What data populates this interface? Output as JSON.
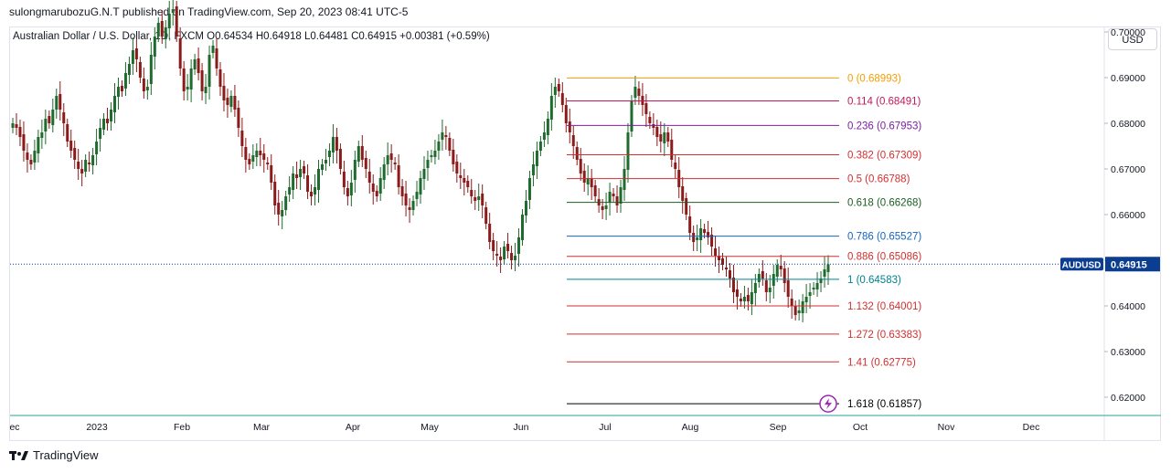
{
  "header": {
    "published_by": "sulongmarubozuG.N.T published on TradingView.com, Sep 20, 2023 08:41 UTC-5"
  },
  "legend": {
    "text": "Australian Dollar / U.S. Dollar, 1D, FXCM  O0.64534  H0.64918  L0.64481  C0.64915  +0.00381 (+0.59%)"
  },
  "currency_button": "USD",
  "footer": {
    "brand": "TradingView"
  },
  "colors": {
    "up": "#26a69a",
    "up_body": "#1f6b2e",
    "down": "#8b1a1a",
    "accent": "#0b3d91"
  },
  "chart_data": {
    "type": "candlestick",
    "symbol": "AUDUSD",
    "last_price": "0.64915",
    "ylim": [
      0.616,
      0.701
    ],
    "y_ticks": [
      "0.70000",
      "0.69000",
      "0.68000",
      "0.67000",
      "0.66000",
      "0.65000",
      "0.64000",
      "0.63000",
      "0.62000"
    ],
    "x_ticks": [
      "ec",
      "2023",
      "Feb",
      "Mar",
      "Apr",
      "May",
      "Jun",
      "Jul",
      "Aug",
      "Sep",
      "Oct",
      "Nov",
      "Dec"
    ],
    "fib_levels": [
      {
        "label": "0 (0.68993)",
        "value": 0.68993,
        "color": "#f59d00"
      },
      {
        "label": "0.114 (0.68491)",
        "value": 0.68491,
        "color": "#c2185b"
      },
      {
        "label": "0.236 (0.67953)",
        "value": 0.67953,
        "color": "#7b1fa2"
      },
      {
        "label": "0.382 (0.67309)",
        "value": 0.67309,
        "color": "#d32f2f"
      },
      {
        "label": "0.5 (0.66788)",
        "value": 0.66788,
        "color": "#d32f2f"
      },
      {
        "label": "0.618 (0.66268)",
        "value": 0.66268,
        "color": "#1b5e20"
      },
      {
        "label": "0.786 (0.65527)",
        "value": 0.65527,
        "color": "#1565c0"
      },
      {
        "label": "0.886 (0.65086)",
        "value": 0.65086,
        "color": "#d32f2f"
      },
      {
        "label": "1 (0.64583)",
        "value": 0.64583,
        "color": "#00838f"
      },
      {
        "label": "1.132 (0.64001)",
        "value": 0.64001,
        "color": "#d32f2f"
      },
      {
        "label": "1.272 (0.63383)",
        "value": 0.63383,
        "color": "#d32f2f"
      },
      {
        "label": "1.41 (0.62775)",
        "value": 0.62775,
        "color": "#d32f2f"
      },
      {
        "label": "1.618 (0.61857)",
        "value": 0.61857,
        "color": "#000000"
      }
    ],
    "closes": [
      0.68,
      0.679,
      0.677,
      0.674,
      0.672,
      0.671,
      0.674,
      0.677,
      0.678,
      0.681,
      0.68,
      0.683,
      0.686,
      0.683,
      0.68,
      0.676,
      0.674,
      0.672,
      0.67,
      0.669,
      0.672,
      0.671,
      0.673,
      0.676,
      0.679,
      0.681,
      0.68,
      0.683,
      0.686,
      0.688,
      0.687,
      0.691,
      0.693,
      0.696,
      0.694,
      0.69,
      0.687,
      0.688,
      0.695,
      0.699,
      0.702,
      0.699,
      0.701,
      0.704,
      0.705,
      0.699,
      0.692,
      0.687,
      0.688,
      0.692,
      0.694,
      0.691,
      0.687,
      0.688,
      0.695,
      0.697,
      0.692,
      0.688,
      0.685,
      0.684,
      0.686,
      0.683,
      0.679,
      0.675,
      0.672,
      0.671,
      0.673,
      0.674,
      0.673,
      0.672,
      0.671,
      0.667,
      0.662,
      0.66,
      0.661,
      0.664,
      0.666,
      0.669,
      0.668,
      0.67,
      0.669,
      0.665,
      0.664,
      0.666,
      0.67,
      0.671,
      0.672,
      0.674,
      0.677,
      0.674,
      0.67,
      0.666,
      0.664,
      0.667,
      0.672,
      0.675,
      0.672,
      0.67,
      0.667,
      0.665,
      0.664,
      0.668,
      0.671,
      0.673,
      0.672,
      0.671,
      0.666,
      0.664,
      0.662,
      0.661,
      0.663,
      0.665,
      0.668,
      0.67,
      0.672,
      0.673,
      0.674,
      0.676,
      0.678,
      0.677,
      0.674,
      0.671,
      0.669,
      0.668,
      0.667,
      0.666,
      0.664,
      0.663,
      0.664,
      0.662,
      0.658,
      0.654,
      0.652,
      0.651,
      0.65,
      0.653,
      0.652,
      0.65,
      0.651,
      0.655,
      0.66,
      0.663,
      0.668,
      0.671,
      0.674,
      0.676,
      0.678,
      0.681,
      0.686,
      0.688,
      0.687,
      0.684,
      0.68,
      0.678,
      0.675,
      0.672,
      0.669,
      0.667,
      0.668,
      0.666,
      0.664,
      0.662,
      0.661,
      0.662,
      0.665,
      0.664,
      0.662,
      0.666,
      0.67,
      0.678,
      0.685,
      0.688,
      0.686,
      0.684,
      0.682,
      0.68,
      0.679,
      0.677,
      0.676,
      0.678,
      0.676,
      0.672,
      0.67,
      0.666,
      0.663,
      0.66,
      0.656,
      0.654,
      0.655,
      0.657,
      0.656,
      0.655,
      0.653,
      0.651,
      0.65,
      0.649,
      0.648,
      0.646,
      0.643,
      0.642,
      0.641,
      0.642,
      0.641,
      0.643,
      0.645,
      0.647,
      0.646,
      0.643,
      0.644,
      0.647,
      0.649,
      0.648,
      0.645,
      0.642,
      0.64,
      0.638,
      0.639,
      0.641,
      0.642,
      0.643,
      0.644,
      0.645,
      0.646,
      0.648,
      0.6491
    ]
  }
}
